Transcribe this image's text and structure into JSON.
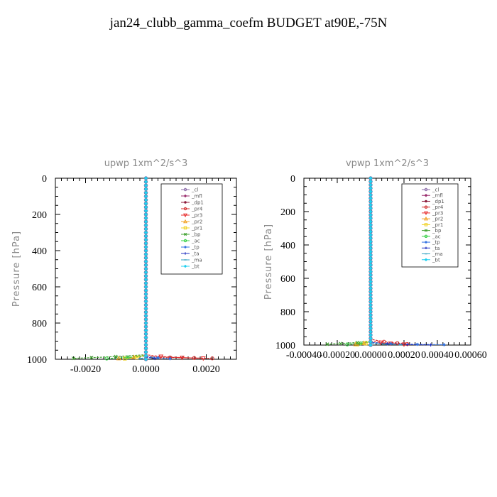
{
  "page": {
    "title": "jan24_clubb_gamma_coefm  BUDGET at90E,-75N"
  },
  "legend_entries": [
    {
      "name": "_cl",
      "color": "#8a6aa8",
      "marker": "circle-open"
    },
    {
      "name": "_mfl",
      "color": "#9b2f6e",
      "marker": "diamond"
    },
    {
      "name": "_dp1",
      "color": "#8b1a3a",
      "marker": "circle"
    },
    {
      "name": "_pr4",
      "color": "#d02a2a",
      "marker": "circle-open"
    },
    {
      "name": "_pr3",
      "color": "#e83030",
      "marker": "triangle-down"
    },
    {
      "name": "_pr2",
      "color": "#f2a020",
      "marker": "triangle"
    },
    {
      "name": "_pr1",
      "color": "#f0d020",
      "marker": "square-open"
    },
    {
      "name": "_bp",
      "color": "#40a030",
      "marker": "x"
    },
    {
      "name": "_ac",
      "color": "#30d040",
      "marker": "circle-open"
    },
    {
      "name": "_tp",
      "color": "#3070e0",
      "marker": "star"
    },
    {
      "name": "_ta",
      "color": "#2030c0",
      "marker": "plus"
    },
    {
      "name": "_ma",
      "color": "#30a0c0",
      "marker": "dash"
    },
    {
      "name": "_bt",
      "color": "#20d0f0",
      "marker": "diamond"
    }
  ],
  "chart_data": [
    {
      "type": "line",
      "title": "upwp   1xm^2/s^3",
      "xlabel": "",
      "ylabel": "Pressure [hPa]",
      "xlim": [
        -0.003,
        0.003
      ],
      "ylim": [
        1000,
        0
      ],
      "x_ticks": [
        -0.002,
        0.0,
        0.002
      ],
      "x_tick_labels": [
        "-0.0020",
        "0.0000",
        "0.0020"
      ],
      "y_ticks": [
        0,
        200,
        400,
        600,
        800,
        1000
      ],
      "y_tick_labels": [
        "0",
        "200",
        "400",
        "600",
        "800",
        "1000"
      ],
      "grid": false,
      "legend_position": "top-right",
      "series": [
        {
          "name": "_cl",
          "x": [
            0,
            0,
            0,
            0,
            0,
            0
          ],
          "y": [
            0,
            200,
            400,
            600,
            800,
            1000
          ]
        },
        {
          "name": "_mfl",
          "x": [
            0,
            0,
            0,
            0,
            0,
            0
          ],
          "y": [
            0,
            200,
            400,
            600,
            800,
            1000
          ]
        },
        {
          "name": "_dp1",
          "x": [
            0,
            0,
            0,
            0,
            0,
            0
          ],
          "y": [
            0,
            200,
            400,
            600,
            800,
            1000
          ]
        },
        {
          "name": "_pr4",
          "x": [
            0,
            0,
            0,
            0.0008,
            0.0016,
            0.0022
          ],
          "y": [
            0,
            960,
            985,
            990,
            993,
            995
          ]
        },
        {
          "name": "_pr3",
          "x": [
            0,
            0,
            0.0005,
            0.0012,
            0.0019
          ],
          "y": [
            0,
            975,
            985,
            991,
            995
          ]
        },
        {
          "name": "_pr2",
          "x": [
            0,
            0,
            -0.0004,
            -0.0009
          ],
          "y": [
            0,
            978,
            988,
            995
          ]
        },
        {
          "name": "_pr1",
          "x": [
            0,
            0,
            -0.0003,
            -0.0007
          ],
          "y": [
            0,
            980,
            990,
            996
          ]
        },
        {
          "name": "_bp",
          "x": [
            0,
            0,
            -0.001,
            -0.0018,
            -0.0024
          ],
          "y": [
            0,
            975,
            985,
            991,
            995
          ]
        },
        {
          "name": "_ac",
          "x": [
            0,
            0,
            -0.0006,
            -0.0013
          ],
          "y": [
            0,
            982,
            990,
            996
          ]
        },
        {
          "name": "_tp",
          "x": [
            0,
            0,
            0.0004,
            0.0008
          ],
          "y": [
            0,
            985,
            992,
            997
          ]
        },
        {
          "name": "_ta",
          "x": [
            0,
            0,
            0.0003
          ],
          "y": [
            0,
            988,
            996
          ]
        },
        {
          "name": "_ma",
          "x": [
            0,
            0,
            -0.0002
          ],
          "y": [
            0,
            990,
            997
          ]
        },
        {
          "name": "_bt",
          "x": [
            0,
            0,
            0,
            0,
            0,
            0
          ],
          "y": [
            0,
            200,
            400,
            600,
            800,
            1000
          ]
        }
      ]
    },
    {
      "type": "line",
      "title": "vpwp   1xm^2/s^3",
      "xlabel": "",
      "ylabel": "Pressure [hPa]",
      "xlim": [
        -0.0004,
        0.0006
      ],
      "ylim": [
        1000,
        0
      ],
      "x_ticks": [
        -0.0004,
        -0.0002,
        0.0,
        0.0002,
        0.0004,
        0.0006
      ],
      "x_tick_labels": [
        "-0.00040",
        "-0.00020",
        "0.00000",
        "0.00020",
        "0.00040",
        "0.00060"
      ],
      "y_ticks": [
        0,
        200,
        400,
        600,
        800,
        1000
      ],
      "y_tick_labels": [
        "0",
        "200",
        "400",
        "600",
        "800",
        "1000"
      ],
      "grid": false,
      "legend_position": "top-right",
      "series": [
        {
          "name": "_cl",
          "x": [
            0,
            0,
            0,
            0,
            0,
            0
          ],
          "y": [
            0,
            200,
            400,
            600,
            800,
            1000
          ]
        },
        {
          "name": "_mfl",
          "x": [
            0,
            0,
            0,
            0,
            0,
            0
          ],
          "y": [
            0,
            200,
            400,
            600,
            800,
            1000
          ]
        },
        {
          "name": "_dp1",
          "x": [
            0,
            0,
            0,
            0,
            0,
            0
          ],
          "y": [
            0,
            200,
            400,
            600,
            800,
            1000
          ]
        },
        {
          "name": "_pr4",
          "x": [
            0,
            0,
            8e-05,
            0.00016,
            0.00022
          ],
          "y": [
            0,
            965,
            980,
            988,
            994
          ]
        },
        {
          "name": "_pr3",
          "x": [
            0,
            0,
            6e-05,
            0.00012,
            0.0002
          ],
          "y": [
            0,
            975,
            985,
            991,
            996
          ]
        },
        {
          "name": "_pr2",
          "x": [
            0,
            0,
            -4e-05,
            -9e-05
          ],
          "y": [
            0,
            978,
            988,
            995
          ]
        },
        {
          "name": "_pr1",
          "x": [
            0,
            0,
            -3e-05,
            -8e-05
          ],
          "y": [
            0,
            980,
            990,
            996
          ]
        },
        {
          "name": "_bp",
          "x": [
            0,
            0,
            -8e-05,
            -0.00018,
            -0.00026
          ],
          "y": [
            0,
            975,
            985,
            991,
            995
          ]
        },
        {
          "name": "_ac",
          "x": [
            0,
            0,
            -6e-05,
            -0.00014
          ],
          "y": [
            0,
            982,
            990,
            996
          ]
        },
        {
          "name": "_tp",
          "x": [
            0,
            0,
            0.00012,
            0.00028,
            0.00044
          ],
          "y": [
            0,
            984,
            992,
            996,
            998
          ]
        },
        {
          "name": "_ta",
          "x": [
            0,
            0,
            0.0001,
            0.00022,
            0.00036
          ],
          "y": [
            0,
            986,
            993,
            997,
            999
          ]
        },
        {
          "name": "_ma",
          "x": [
            0,
            0,
            8e-05,
            0.00018
          ],
          "y": [
            0,
            988,
            994,
            998
          ]
        },
        {
          "name": "_bt",
          "x": [
            0,
            0,
            0,
            0,
            0,
            0
          ],
          "y": [
            0,
            200,
            400,
            600,
            800,
            1000
          ]
        }
      ]
    }
  ]
}
